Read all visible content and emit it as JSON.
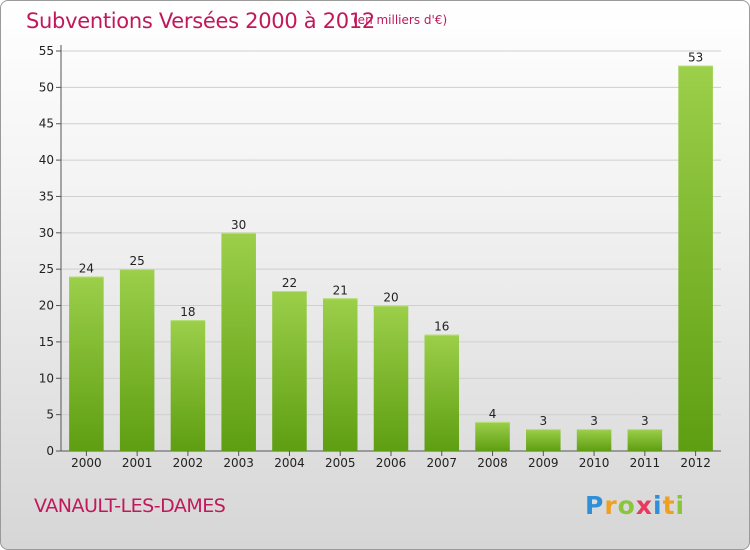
{
  "title": "Subventions Versées 2000 à 2012",
  "subtitle": "(en milliers d'€)",
  "town": "VANAULT-LES-DAMES",
  "logo": {
    "text": "Proxiti",
    "letters": [
      {
        "ch": "P",
        "color": "#2f8fd8"
      },
      {
        "ch": "r",
        "color": "#f0a020"
      },
      {
        "ch": "o",
        "color": "#8cc43c"
      },
      {
        "ch": "x",
        "color": "#e83a5f"
      },
      {
        "ch": "i",
        "color": "#2f8fd8"
      },
      {
        "ch": "t",
        "color": "#f0a020"
      },
      {
        "ch": "i",
        "color": "#8cc43c"
      }
    ]
  },
  "colors": {
    "title": "#c2185b",
    "bar_top": "#9ccf4a",
    "bar_bottom": "#5e9e12",
    "grid": "#cfcfcf"
  },
  "chart_data": {
    "type": "bar",
    "title": "Subventions Versées 2000 à 2012",
    "subtitle": "(en milliers d'€)",
    "categories": [
      "2000",
      "2001",
      "2002",
      "2003",
      "2004",
      "2005",
      "2006",
      "2007",
      "2008",
      "2009",
      "2010",
      "2011",
      "2012"
    ],
    "values": [
      24,
      25,
      18,
      30,
      22,
      21,
      20,
      16,
      4,
      3,
      3,
      3,
      53
    ],
    "ylim": [
      0,
      55
    ],
    "yticks": [
      0,
      5,
      10,
      15,
      20,
      25,
      30,
      35,
      40,
      45,
      50,
      55
    ],
    "grid": true,
    "data_labels": true
  }
}
